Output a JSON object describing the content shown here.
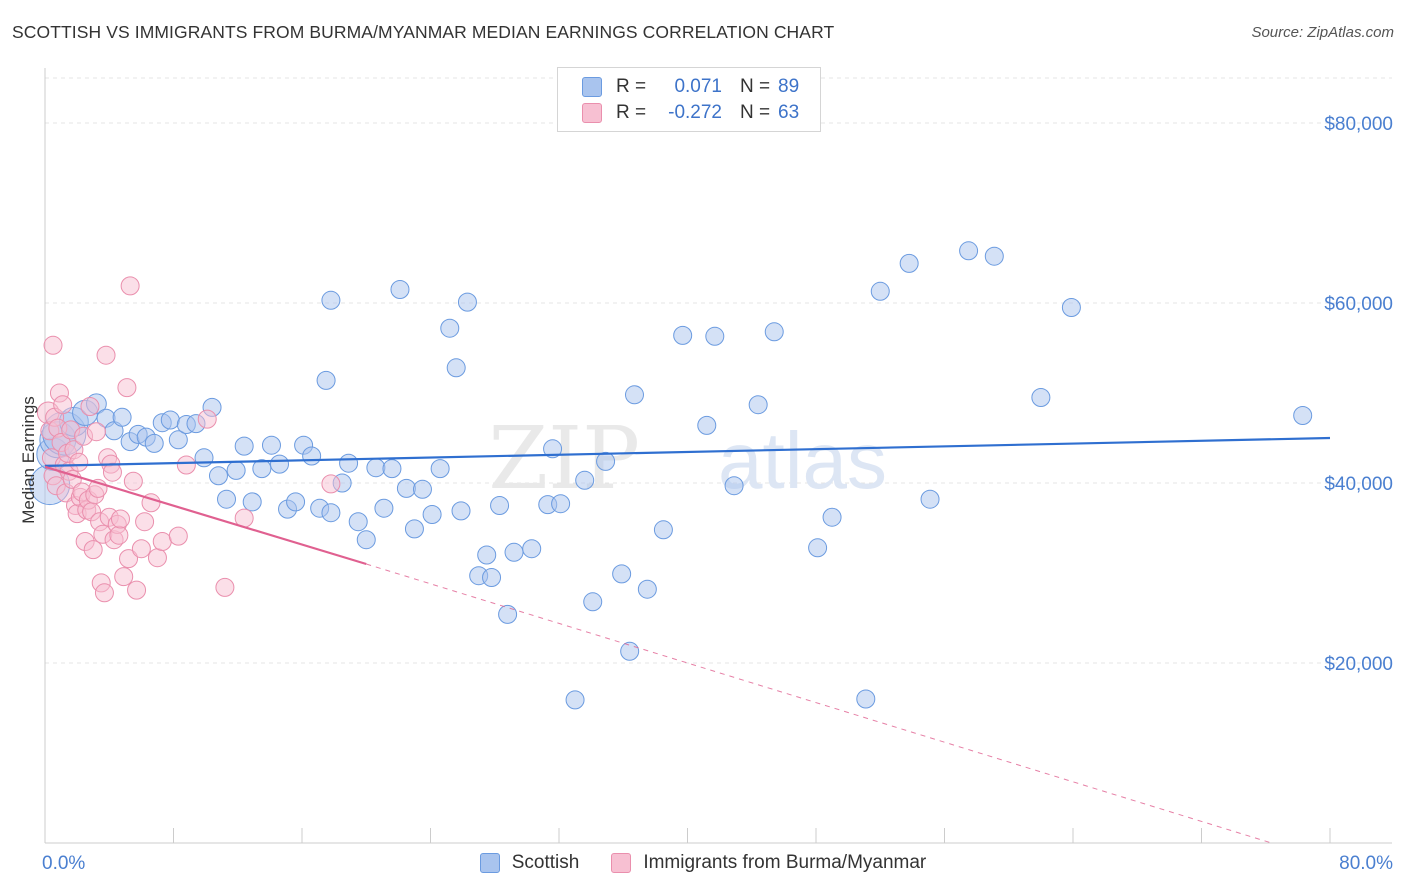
{
  "title": "SCOTTISH VS IMMIGRANTS FROM BURMA/MYANMAR MEDIAN EARNINGS CORRELATION CHART",
  "source": "Source: ZipAtlas.com",
  "watermark": {
    "zip": "ZIP",
    "atlas": "atlas"
  },
  "legend": {
    "rows": [
      {
        "label": "R =",
        "r_value": "0.071",
        "n_label": "N =",
        "n_value": "89",
        "color": "#a9c4ee",
        "stroke": "#6b9be0"
      },
      {
        "label": "R =",
        "r_value": "-0.272",
        "n_label": "N =",
        "n_value": "63",
        "color": "#f7c0d2",
        "stroke": "#ea8fad"
      }
    ]
  },
  "bottom_legend": [
    {
      "label": "Scottish",
      "color": "#a9c4ee",
      "stroke": "#6b9be0"
    },
    {
      "label": "Immigrants from Burma/Myanmar",
      "color": "#f7c0d2",
      "stroke": "#ea8fad"
    }
  ],
  "chart_data": {
    "type": "scatter",
    "title": "SCOTTISH VS IMMIGRANTS FROM BURMA/MYANMAR MEDIAN EARNINGS CORRELATION CHART",
    "xlabel": "",
    "ylabel": "Median Earnings",
    "xlim": [
      0,
      80
    ],
    "ylim": [
      0,
      85000
    ],
    "x_edge_labels": [
      "0.0%",
      "80.0%"
    ],
    "y_ticks": [
      {
        "value": 20000,
        "label": "$20,000"
      },
      {
        "value": 40000,
        "label": "$40,000"
      },
      {
        "value": 60000,
        "label": "$60,000"
      },
      {
        "value": 80000,
        "label": "$80,000"
      }
    ],
    "x_ticks": [
      0,
      8,
      16,
      24,
      32,
      40,
      48,
      56,
      64,
      72,
      80
    ],
    "series": [
      {
        "name": "Scottish",
        "color": "#a9c4ee",
        "stroke": "#6b9be0",
        "trend": {
          "x0": 0,
          "y0": 41900,
          "x1": 80,
          "y1": 45000,
          "color": "#2f6fd0"
        },
        "points": [
          {
            "x": 0.3,
            "y": 39800,
            "s": 2.2
          },
          {
            "x": 0.5,
            "y": 43200,
            "s": 1.8
          },
          {
            "x": 0.8,
            "y": 44800,
            "s": 2.0
          },
          {
            "x": 1.2,
            "y": 45500,
            "s": 2.4
          },
          {
            "x": 1.8,
            "y": 46800,
            "s": 1.6
          },
          {
            "x": 2.5,
            "y": 47800,
            "s": 1.4
          },
          {
            "x": 3.2,
            "y": 48800,
            "s": 1.1
          },
          {
            "x": 3.8,
            "y": 47200,
            "s": 1.0
          },
          {
            "x": 4.3,
            "y": 45800,
            "s": 1.0
          },
          {
            "x": 4.8,
            "y": 47300,
            "s": 1.0
          },
          {
            "x": 5.3,
            "y": 44600,
            "s": 1.0
          },
          {
            "x": 5.8,
            "y": 45400,
            "s": 1.0
          },
          {
            "x": 6.3,
            "y": 45100,
            "s": 1.0
          },
          {
            "x": 6.8,
            "y": 44400,
            "s": 1.0
          },
          {
            "x": 7.3,
            "y": 46700,
            "s": 1.0
          },
          {
            "x": 7.8,
            "y": 47000,
            "s": 1.0
          },
          {
            "x": 8.3,
            "y": 44800,
            "s": 1.0
          },
          {
            "x": 8.8,
            "y": 46500,
            "s": 1.0
          },
          {
            "x": 9.4,
            "y": 46600,
            "s": 1.0
          },
          {
            "x": 9.9,
            "y": 42800,
            "s": 1.0
          },
          {
            "x": 10.4,
            "y": 48400,
            "s": 1.0
          },
          {
            "x": 10.8,
            "y": 40800,
            "s": 1.0
          },
          {
            "x": 11.3,
            "y": 38200,
            "s": 1.0
          },
          {
            "x": 11.9,
            "y": 41400,
            "s": 1.0
          },
          {
            "x": 12.4,
            "y": 44100,
            "s": 1.0
          },
          {
            "x": 12.9,
            "y": 37900,
            "s": 1.0
          },
          {
            "x": 13.5,
            "y": 41600,
            "s": 1.0
          },
          {
            "x": 14.1,
            "y": 44200,
            "s": 1.0
          },
          {
            "x": 14.6,
            "y": 42100,
            "s": 1.0
          },
          {
            "x": 15.1,
            "y": 37100,
            "s": 1.0
          },
          {
            "x": 15.6,
            "y": 37900,
            "s": 1.0
          },
          {
            "x": 16.1,
            "y": 44200,
            "s": 1.0
          },
          {
            "x": 16.6,
            "y": 43000,
            "s": 1.0
          },
          {
            "x": 17.1,
            "y": 37200,
            "s": 1.0
          },
          {
            "x": 17.5,
            "y": 51400,
            "s": 1.0
          },
          {
            "x": 17.8,
            "y": 36700,
            "s": 1.0
          },
          {
            "x": 17.8,
            "y": 60300,
            "s": 1.0
          },
          {
            "x": 18.5,
            "y": 40000,
            "s": 1.0
          },
          {
            "x": 18.9,
            "y": 42200,
            "s": 1.0
          },
          {
            "x": 19.5,
            "y": 35700,
            "s": 1.0
          },
          {
            "x": 20.0,
            "y": 33700,
            "s": 1.0
          },
          {
            "x": 20.6,
            "y": 41700,
            "s": 1.0
          },
          {
            "x": 21.1,
            "y": 37200,
            "s": 1.0
          },
          {
            "x": 21.6,
            "y": 41600,
            "s": 1.0
          },
          {
            "x": 22.1,
            "y": 61500,
            "s": 1.0
          },
          {
            "x": 22.5,
            "y": 39400,
            "s": 1.0
          },
          {
            "x": 23.0,
            "y": 34900,
            "s": 1.0
          },
          {
            "x": 23.5,
            "y": 39300,
            "s": 1.0
          },
          {
            "x": 24.1,
            "y": 36500,
            "s": 1.0
          },
          {
            "x": 24.6,
            "y": 41600,
            "s": 1.0
          },
          {
            "x": 25.2,
            "y": 57200,
            "s": 1.0
          },
          {
            "x": 25.6,
            "y": 52800,
            "s": 1.0
          },
          {
            "x": 25.9,
            "y": 36900,
            "s": 1.0
          },
          {
            "x": 26.3,
            "y": 60100,
            "s": 1.0
          },
          {
            "x": 27.0,
            "y": 29700,
            "s": 1.0
          },
          {
            "x": 27.5,
            "y": 32000,
            "s": 1.0
          },
          {
            "x": 27.8,
            "y": 29500,
            "s": 1.0
          },
          {
            "x": 28.3,
            "y": 37500,
            "s": 1.0
          },
          {
            "x": 28.8,
            "y": 25400,
            "s": 1.0
          },
          {
            "x": 29.2,
            "y": 32300,
            "s": 1.0
          },
          {
            "x": 30.3,
            "y": 32700,
            "s": 1.0
          },
          {
            "x": 31.3,
            "y": 37600,
            "s": 1.0
          },
          {
            "x": 31.6,
            "y": 43800,
            "s": 1.0
          },
          {
            "x": 32.1,
            "y": 37700,
            "s": 1.0
          },
          {
            "x": 33.0,
            "y": 15900,
            "s": 1.0
          },
          {
            "x": 33.6,
            "y": 40300,
            "s": 1.0
          },
          {
            "x": 34.1,
            "y": 26800,
            "s": 1.0
          },
          {
            "x": 34.9,
            "y": 42400,
            "s": 1.0
          },
          {
            "x": 35.9,
            "y": 29900,
            "s": 1.0
          },
          {
            "x": 36.4,
            "y": 21300,
            "s": 1.0
          },
          {
            "x": 36.7,
            "y": 49800,
            "s": 1.0
          },
          {
            "x": 37.5,
            "y": 28200,
            "s": 1.0
          },
          {
            "x": 38.5,
            "y": 34800,
            "s": 1.0
          },
          {
            "x": 39.7,
            "y": 56400,
            "s": 1.0
          },
          {
            "x": 41.2,
            "y": 46400,
            "s": 1.0
          },
          {
            "x": 41.7,
            "y": 56300,
            "s": 1.0
          },
          {
            "x": 42.9,
            "y": 39700,
            "s": 1.0
          },
          {
            "x": 44.4,
            "y": 48700,
            "s": 1.0
          },
          {
            "x": 45.4,
            "y": 56800,
            "s": 1.0
          },
          {
            "x": 48.1,
            "y": 32800,
            "s": 1.0
          },
          {
            "x": 49.0,
            "y": 36200,
            "s": 1.0
          },
          {
            "x": 51.1,
            "y": 16000,
            "s": 1.0
          },
          {
            "x": 52.0,
            "y": 61300,
            "s": 1.0
          },
          {
            "x": 53.8,
            "y": 64400,
            "s": 1.0
          },
          {
            "x": 55.1,
            "y": 38200,
            "s": 1.0
          },
          {
            "x": 57.5,
            "y": 65800,
            "s": 1.0
          },
          {
            "x": 59.1,
            "y": 65200,
            "s": 1.0
          },
          {
            "x": 62.0,
            "y": 49500,
            "s": 1.0
          },
          {
            "x": 63.9,
            "y": 59500,
            "s": 1.0
          },
          {
            "x": 78.3,
            "y": 47500,
            "s": 1.0
          }
        ]
      },
      {
        "name": "Immigrants from Burma/Myanmar",
        "color": "#f7c0d2",
        "stroke": "#ea8fad",
        "trend": {
          "x0": 0,
          "y0": 41800,
          "x1": 20,
          "y1": 31000,
          "dash_to_x": 80,
          "dash_to_y": -2000,
          "color": "#e06090"
        },
        "points": [
          {
            "x": 0.2,
            "y": 47800,
            "s": 1.2
          },
          {
            "x": 0.3,
            "y": 45800,
            "s": 1.0
          },
          {
            "x": 0.4,
            "y": 42800,
            "s": 1.0
          },
          {
            "x": 0.5,
            "y": 55300,
            "s": 1.0
          },
          {
            "x": 0.5,
            "y": 40800,
            "s": 1.0
          },
          {
            "x": 0.6,
            "y": 47300,
            "s": 1.0
          },
          {
            "x": 0.7,
            "y": 39700,
            "s": 1.0
          },
          {
            "x": 0.8,
            "y": 46100,
            "s": 1.0
          },
          {
            "x": 0.9,
            "y": 50000,
            "s": 1.0
          },
          {
            "x": 1.0,
            "y": 44500,
            "s": 1.0
          },
          {
            "x": 1.1,
            "y": 48700,
            "s": 1.0
          },
          {
            "x": 1.2,
            "y": 42000,
            "s": 1.0
          },
          {
            "x": 1.3,
            "y": 38900,
            "s": 1.0
          },
          {
            "x": 1.4,
            "y": 43300,
            "s": 1.0
          },
          {
            "x": 1.5,
            "y": 41300,
            "s": 1.0
          },
          {
            "x": 1.6,
            "y": 45900,
            "s": 1.0
          },
          {
            "x": 1.7,
            "y": 40400,
            "s": 1.0
          },
          {
            "x": 1.8,
            "y": 43700,
            "s": 1.0
          },
          {
            "x": 1.9,
            "y": 37500,
            "s": 1.0
          },
          {
            "x": 2.0,
            "y": 36600,
            "s": 1.0
          },
          {
            "x": 2.1,
            "y": 42300,
            "s": 1.0
          },
          {
            "x": 2.2,
            "y": 38400,
            "s": 1.0
          },
          {
            "x": 2.3,
            "y": 39000,
            "s": 1.0
          },
          {
            "x": 2.4,
            "y": 45200,
            "s": 1.0
          },
          {
            "x": 2.5,
            "y": 33500,
            "s": 1.0
          },
          {
            "x": 2.6,
            "y": 37000,
            "s": 1.0
          },
          {
            "x": 2.7,
            "y": 38100,
            "s": 1.0
          },
          {
            "x": 2.8,
            "y": 48500,
            "s": 1.0
          },
          {
            "x": 2.9,
            "y": 36800,
            "s": 1.0
          },
          {
            "x": 3.0,
            "y": 32600,
            "s": 1.0
          },
          {
            "x": 3.1,
            "y": 38700,
            "s": 1.0
          },
          {
            "x": 3.2,
            "y": 45700,
            "s": 1.0
          },
          {
            "x": 3.3,
            "y": 39400,
            "s": 1.0
          },
          {
            "x": 3.4,
            "y": 35700,
            "s": 1.0
          },
          {
            "x": 3.5,
            "y": 28900,
            "s": 1.0
          },
          {
            "x": 3.6,
            "y": 34300,
            "s": 1.0
          },
          {
            "x": 3.7,
            "y": 27800,
            "s": 1.0
          },
          {
            "x": 3.8,
            "y": 54200,
            "s": 1.0
          },
          {
            "x": 3.9,
            "y": 42800,
            "s": 1.0
          },
          {
            "x": 4.0,
            "y": 36200,
            "s": 1.0
          },
          {
            "x": 4.1,
            "y": 42100,
            "s": 1.0
          },
          {
            "x": 4.2,
            "y": 41200,
            "s": 1.0
          },
          {
            "x": 4.3,
            "y": 33700,
            "s": 1.0
          },
          {
            "x": 4.5,
            "y": 35400,
            "s": 1.0
          },
          {
            "x": 4.6,
            "y": 34200,
            "s": 1.0
          },
          {
            "x": 4.7,
            "y": 36000,
            "s": 1.0
          },
          {
            "x": 4.9,
            "y": 29600,
            "s": 1.0
          },
          {
            "x": 5.1,
            "y": 50600,
            "s": 1.0
          },
          {
            "x": 5.2,
            "y": 31600,
            "s": 1.0
          },
          {
            "x": 5.3,
            "y": 61900,
            "s": 1.0
          },
          {
            "x": 5.5,
            "y": 40200,
            "s": 1.0
          },
          {
            "x": 5.7,
            "y": 28100,
            "s": 1.0
          },
          {
            "x": 6.0,
            "y": 32700,
            "s": 1.0
          },
          {
            "x": 6.2,
            "y": 35700,
            "s": 1.0
          },
          {
            "x": 6.6,
            "y": 37800,
            "s": 1.0
          },
          {
            "x": 7.0,
            "y": 31700,
            "s": 1.0
          },
          {
            "x": 7.3,
            "y": 33500,
            "s": 1.0
          },
          {
            "x": 8.3,
            "y": 34100,
            "s": 1.0
          },
          {
            "x": 8.8,
            "y": 42000,
            "s": 1.0
          },
          {
            "x": 10.1,
            "y": 47100,
            "s": 1.0
          },
          {
            "x": 11.2,
            "y": 28400,
            "s": 1.0
          },
          {
            "x": 12.4,
            "y": 36100,
            "s": 1.0
          },
          {
            "x": 17.8,
            "y": 39900,
            "s": 1.0
          }
        ]
      }
    ]
  }
}
